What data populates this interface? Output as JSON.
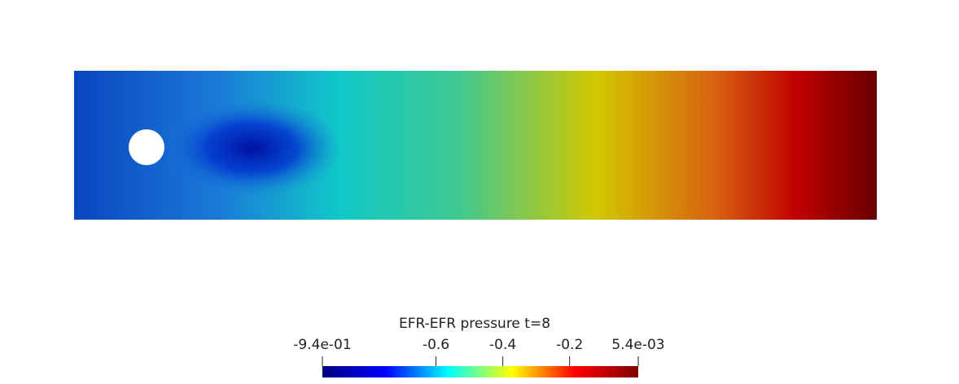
{
  "chart_data": {
    "type": "colorbar",
    "title": "EFR-EFR pressure t=8",
    "range": [
      {
        "value": -0.94,
        "label": "-9.4e-01"
      },
      {
        "value": 0.0054,
        "label": "5.4e-03"
      }
    ],
    "ticks": [
      -0.6,
      -0.4,
      -0.2
    ],
    "colormap": [
      "#00007f",
      "#0000ff",
      "#00ffff",
      "#ffff00",
      "#ff0000",
      "#7f0000"
    ]
  }
}
